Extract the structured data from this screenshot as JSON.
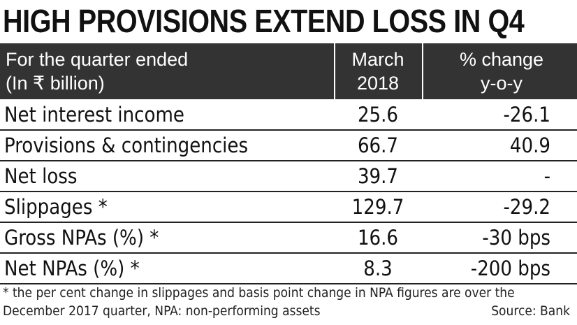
{
  "chart_data": {
    "type": "table",
    "title": "HIGH PROVISIONS EXTEND LOSS IN Q4",
    "header": {
      "label_line1": "For the quarter ended",
      "label_line2": "(In ₹ billion)",
      "col1_line1": "March",
      "col1_line2": "2018",
      "col2_line1": "% change",
      "col2_line2": "y-o-y"
    },
    "rows": [
      {
        "label": "Net interest income",
        "march_2018": "25.6",
        "change_yoy": "-26.1"
      },
      {
        "label": "Provisions & contingencies",
        "march_2018": "66.7",
        "change_yoy": "40.9"
      },
      {
        "label": "Net loss",
        "march_2018": "39.7",
        "change_yoy": "-"
      },
      {
        "label": "Slippages *",
        "march_2018": "129.7",
        "change_yoy": "-29.2"
      },
      {
        "label": "Gross NPAs (%) *",
        "march_2018": "16.6",
        "change_yoy": "-30 bps"
      },
      {
        "label": "Net NPAs (%) *",
        "march_2018": "8.3",
        "change_yoy": "-200 bps"
      }
    ],
    "footnote": "* the per cent change in slippages and basis point change in NPA figures are over the December 2017 quarter, NPA: non-performing assets",
    "source": "Source: Bank"
  }
}
